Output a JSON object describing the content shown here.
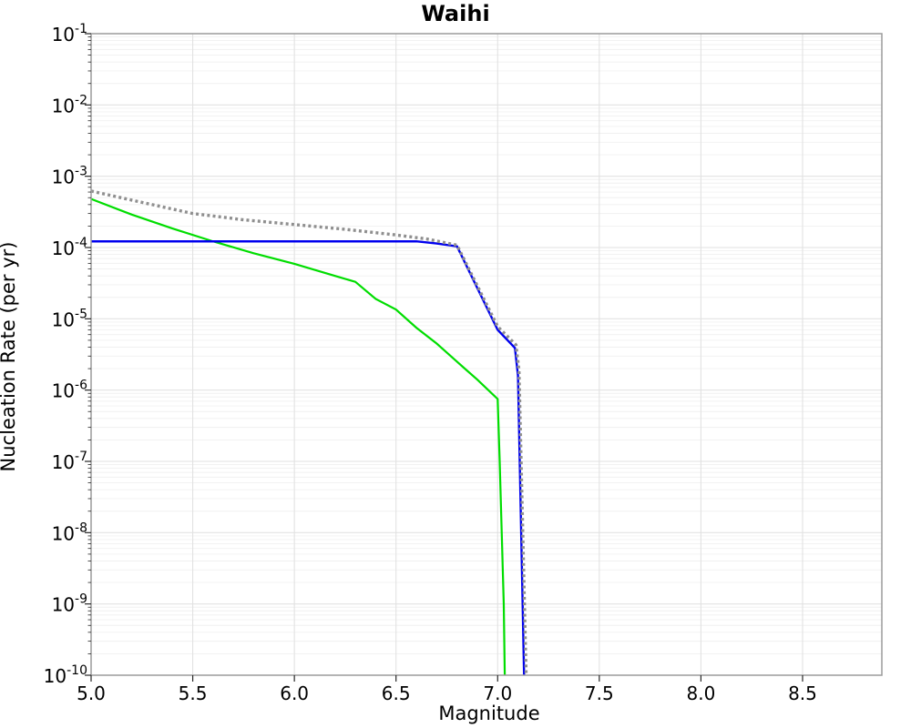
{
  "chart_data": {
    "type": "line",
    "title": "Waihi",
    "xlabel": "Magnitude",
    "ylabel": "Nucleation Rate (per yr)",
    "x_range": [
      5.0,
      8.89
    ],
    "y_log_range": [
      -1,
      -10
    ],
    "x_ticks": [
      {
        "value": 5.0,
        "label": "5.0"
      },
      {
        "value": 5.5,
        "label": "5.5"
      },
      {
        "value": 6.0,
        "label": "6.0"
      },
      {
        "value": 6.5,
        "label": "6.5"
      },
      {
        "value": 7.0,
        "label": "7.0"
      },
      {
        "value": 7.5,
        "label": "7.5"
      },
      {
        "value": 8.0,
        "label": "8.0"
      },
      {
        "value": 8.5,
        "label": "8.5"
      }
    ],
    "y_tick_exponents": [
      -1,
      -2,
      -3,
      -4,
      -5,
      -6,
      -7,
      -8,
      -9,
      -10
    ],
    "grid": {
      "show": true,
      "major_color": "#e2e2e2",
      "minor_color": "#f0f0f0",
      "legend": "none"
    },
    "frame_color": "#9b9b9b",
    "tick_color": "#262626",
    "series": [
      {
        "name": "green-curve",
        "color": "#00dd00",
        "style": "solid",
        "width": 2.2,
        "points": [
          [
            5.0,
            0.00048
          ],
          [
            5.2,
            0.00029
          ],
          [
            5.4,
            0.000185
          ],
          [
            5.6,
            0.000122
          ],
          [
            5.8,
            8.3e-05
          ],
          [
            6.0,
            5.9e-05
          ],
          [
            6.2,
            4e-05
          ],
          [
            6.3,
            3.3e-05
          ],
          [
            6.4,
            1.9e-05
          ],
          [
            6.5,
            1.35e-05
          ],
          [
            6.6,
            7.5e-06
          ],
          [
            6.7,
            4.5e-06
          ],
          [
            6.8,
            2.5e-06
          ],
          [
            6.9,
            1.4e-06
          ],
          [
            7.0,
            7.5e-07
          ],
          [
            7.01,
            1e-07
          ],
          [
            7.02,
            1e-08
          ],
          [
            7.03,
            1e-09
          ],
          [
            7.035,
            1e-10
          ]
        ]
      },
      {
        "name": "blue-curve",
        "color": "#0000ee",
        "style": "solid",
        "width": 2.4,
        "points": [
          [
            5.0,
            0.000122
          ],
          [
            6.6,
            0.000122
          ],
          [
            6.7,
            0.000114
          ],
          [
            6.8,
            0.000104
          ],
          [
            7.0,
            7e-06
          ],
          [
            7.085,
            3.9e-06
          ],
          [
            7.1,
            1.6e-06
          ],
          [
            7.13,
            1e-10
          ]
        ]
      },
      {
        "name": "grey-dotted-curve",
        "color": "#8f8f8f",
        "style": "dotted",
        "width": 3.4,
        "points": [
          [
            5.0,
            0.00062
          ],
          [
            5.25,
            0.00043
          ],
          [
            5.5,
            0.0003
          ],
          [
            5.75,
            0.000245
          ],
          [
            6.0,
            0.00021
          ],
          [
            6.25,
            0.00018
          ],
          [
            6.5,
            0.00015
          ],
          [
            6.65,
            0.000132
          ],
          [
            6.8,
            0.000108
          ],
          [
            7.0,
            7.8e-06
          ],
          [
            7.09,
            4.3e-06
          ],
          [
            7.105,
            1.9e-06
          ],
          [
            7.14,
            1e-10
          ]
        ]
      }
    ]
  }
}
